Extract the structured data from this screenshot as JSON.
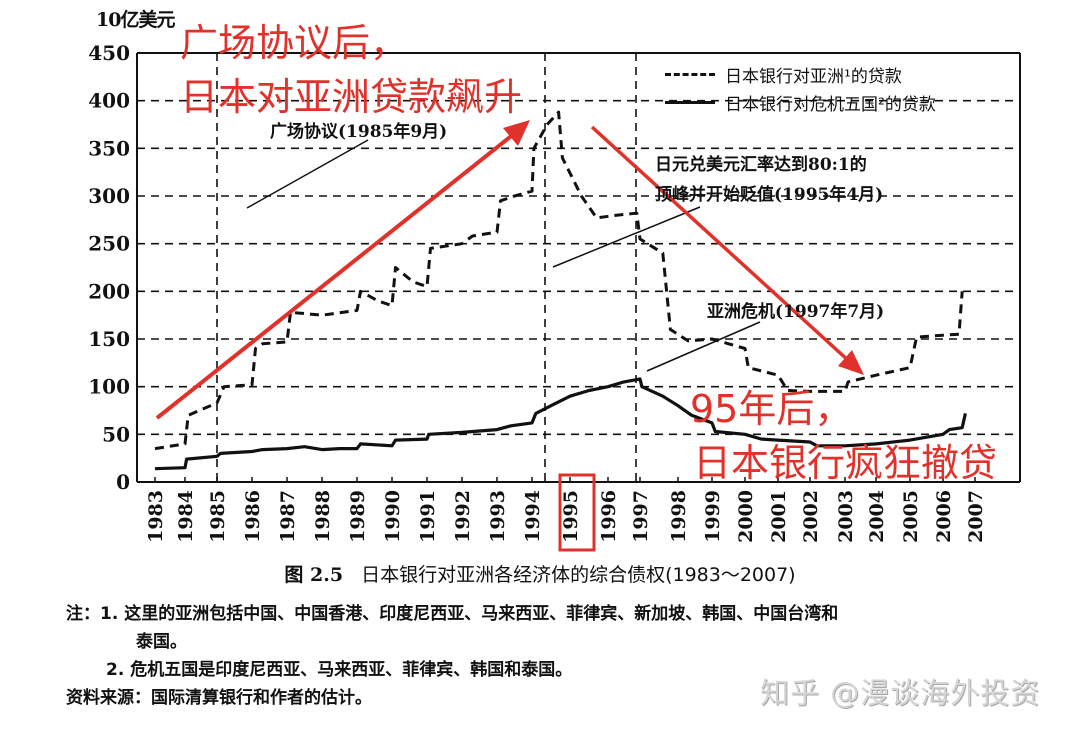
{
  "chart_data": {
    "type": "line",
    "title": "日本银行对亚洲各经济体的综合债权(1983～2007)",
    "figure_number": "图 2.5",
    "ylabel": "10亿美元",
    "xlabel": "",
    "ylim": [
      0,
      450
    ],
    "yticks": [
      0,
      50,
      100,
      150,
      200,
      250,
      300,
      350,
      400,
      450
    ],
    "xticks": [
      "1983",
      "1984",
      "1985",
      "1986",
      "1987",
      "1988",
      "1989",
      "1990",
      "1991",
      "1992",
      "1993",
      "1994",
      "1995",
      "1996",
      "1997",
      "1998",
      "1999",
      "2000",
      "2001",
      "2002",
      "2003",
      "2004",
      "2005",
      "2006",
      "2007"
    ],
    "grid": true,
    "legend_position": "upper right",
    "series": [
      {
        "name": "日本银行对亚洲¹的贷款",
        "style": "dashed",
        "points": [
          [
            "1983.0",
            35
          ],
          [
            "1984.0",
            40
          ],
          [
            "1984.1",
            70
          ],
          [
            "1985.0",
            83
          ],
          [
            "1985.2",
            100
          ],
          [
            "1986.0",
            102
          ],
          [
            "1986.1",
            140
          ],
          [
            "1986.3",
            145
          ],
          [
            "1987.0",
            147
          ],
          [
            "1987.1",
            178
          ],
          [
            "1988.0",
            175
          ],
          [
            "1989.0",
            180
          ],
          [
            "1989.1",
            200
          ],
          [
            "1989.6",
            190
          ],
          [
            "1990.0",
            185
          ],
          [
            "1990.1",
            225
          ],
          [
            "1990.6",
            210
          ],
          [
            "1991.0",
            205
          ],
          [
            "1991.1",
            245
          ],
          [
            "1992.0",
            250
          ],
          [
            "1992.3",
            258
          ],
          [
            "1993.0",
            262
          ],
          [
            "1993.1",
            295
          ],
          [
            "1993.5",
            300
          ],
          [
            "1994.0",
            305
          ],
          [
            "1994.05",
            350
          ],
          [
            "1994.4",
            375
          ],
          [
            "1994.7",
            388
          ],
          [
            "1994.8",
            340
          ],
          [
            "1995.3",
            300
          ],
          [
            "1995.7",
            277
          ],
          [
            "1996.3",
            280
          ],
          [
            "1996.9",
            282
          ],
          [
            "1997.0",
            255
          ],
          [
            "1997.6",
            240
          ],
          [
            "1997.8",
            160
          ],
          [
            "1998.3",
            148
          ],
          [
            "1999.0",
            150
          ],
          [
            "1999.5",
            145
          ],
          [
            "2000.0",
            140
          ],
          [
            "2000.1",
            120
          ],
          [
            "2001.0",
            112
          ],
          [
            "2001.3",
            96
          ],
          [
            "2002.0",
            95
          ],
          [
            "2003.0",
            95
          ],
          [
            "2003.1",
            105
          ],
          [
            "2004.0",
            112
          ],
          [
            "2005.0",
            120
          ],
          [
            "2005.2",
            152
          ],
          [
            "2006.0",
            154
          ],
          [
            "2006.5",
            155
          ],
          [
            "2006.6",
            200
          ]
        ]
      },
      {
        "name": "日本银行对危机五国²的贷款",
        "style": "solid",
        "points": [
          [
            "1983.0",
            14
          ],
          [
            "1984.0",
            15
          ],
          [
            "1984.05",
            24
          ],
          [
            "1985.0",
            27
          ],
          [
            "1985.1",
            30
          ],
          [
            "1986.0",
            32
          ],
          [
            "1986.3",
            34
          ],
          [
            "1987.0",
            35
          ],
          [
            "1987.5",
            37
          ],
          [
            "1988.0",
            34
          ],
          [
            "1988.5",
            35
          ],
          [
            "1989.0",
            35
          ],
          [
            "1989.1",
            40
          ],
          [
            "1990.0",
            38
          ],
          [
            "1990.1",
            44
          ],
          [
            "1991.0",
            45
          ],
          [
            "1991.05",
            50
          ],
          [
            "1992.0",
            52
          ],
          [
            "1993.0",
            55
          ],
          [
            "1993.4",
            59
          ],
          [
            "1994.0",
            62
          ],
          [
            "1994.1",
            72
          ],
          [
            "1994.5",
            80
          ],
          [
            "1995.0",
            90
          ],
          [
            "1995.5",
            96
          ],
          [
            "1996.0",
            100
          ],
          [
            "1996.5",
            105
          ],
          [
            "1997.0",
            108
          ],
          [
            "1997.05",
            100
          ],
          [
            "1997.6",
            90
          ],
          [
            "1998.0",
            80
          ],
          [
            "1998.4",
            70
          ],
          [
            "1999.0",
            62
          ],
          [
            "1999.1",
            53
          ],
          [
            "2000.0",
            50
          ],
          [
            "2000.5",
            45
          ],
          [
            "2001.0",
            44
          ],
          [
            "2002.0",
            42
          ],
          [
            "2002.2",
            38
          ],
          [
            "2003.0",
            38
          ],
          [
            "2004.0",
            40
          ],
          [
            "2005.0",
            44
          ],
          [
            "2006.0",
            50
          ],
          [
            "2006.2",
            55
          ],
          [
            "2006.6",
            57
          ],
          [
            "2006.7",
            72
          ]
        ]
      }
    ],
    "annotations": [
      {
        "text": "广场协议(1985年9月)",
        "year": "1985.75"
      },
      {
        "text": "日元兑美元汇率达到80:1的顶峰并开始贬值(1995年4月)",
        "year": "1995.3"
      },
      {
        "text": "亚洲危机(1997年7月)",
        "year": "1997.5"
      }
    ],
    "highlighted_xtick": "1995",
    "overlay_annotations": [
      {
        "text": "广场协议后，日本对亚洲贷款飙升",
        "direction": "up"
      },
      {
        "text": "95年后，日本银行疯狂撤贷",
        "direction": "down"
      }
    ]
  },
  "axis": {
    "unit_label": "10亿美元"
  },
  "legend": {
    "item1": "日本银行对亚洲¹的贷款",
    "item2": "日本银行对危机五国²的贷款"
  },
  "annotations": {
    "plaza": "广场协议(1985年9月)",
    "yen_line1": "日元兑美元汇率达到80:1的",
    "yen_line2": "顶峰并开始贬值(1995年4月)",
    "crisis": "亚洲危机(1997年7月)"
  },
  "overlay": {
    "line1": "广场协议后，",
    "line2": "日本对亚洲贷款飙升",
    "line3": "95年后，",
    "line4": "日本银行疯狂撤贷",
    "color": "#e0312a"
  },
  "caption": {
    "fig_no": "图 2.5",
    "title": "日本银行对亚洲各经济体的综合债权(1983～2007)"
  },
  "notes": {
    "note1_a": "注：1. 这里的亚洲包括中国、中国香港、印度尼西亚、马来西亚、菲律宾、新加坡、韩国、中国台湾和",
    "note1_b": "泰国。",
    "note2": "2. 危机五国是印度尼西亚、马来西亚、菲律宾、韩国和泰国。",
    "source": "资料来源：国际清算银行和作者的估计。"
  },
  "watermark": "知乎 @漫谈海外投资"
}
